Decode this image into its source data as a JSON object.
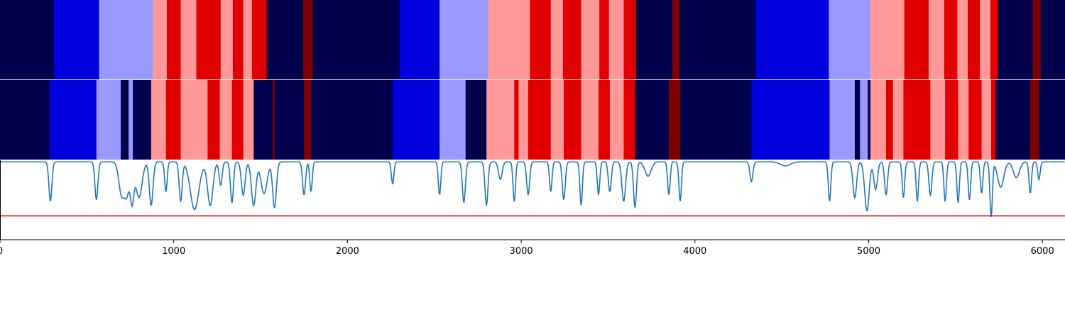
{
  "chart_data": {
    "type": "heatmap",
    "title": "",
    "xlabel": "",
    "ylabel": "",
    "xlim": [
      0,
      6130
    ],
    "x_ticks": [
      "0",
      "1000",
      "2000",
      "3000",
      "4000",
      "5000",
      "6000"
    ],
    "state_colors": {
      "0": "#00004c",
      "1": "#0000dd",
      "2": "#9999ff",
      "3": "#ff9999",
      "4": "#e00000",
      "5": "#7f0000"
    },
    "rows": [
      {
        "segments": [
          [
            0,
            310,
            0
          ],
          [
            310,
            570,
            1
          ],
          [
            570,
            880,
            2
          ],
          [
            880,
            960,
            3
          ],
          [
            960,
            1040,
            4
          ],
          [
            1040,
            1130,
            3
          ],
          [
            1130,
            1270,
            4
          ],
          [
            1270,
            1340,
            3
          ],
          [
            1340,
            1400,
            4
          ],
          [
            1400,
            1450,
            3
          ],
          [
            1450,
            1535,
            4
          ],
          [
            1535,
            1745,
            0
          ],
          [
            1745,
            1800,
            5
          ],
          [
            1800,
            2300,
            0
          ],
          [
            2300,
            2530,
            1
          ],
          [
            2530,
            2810,
            2
          ],
          [
            2810,
            3050,
            3
          ],
          [
            3050,
            3170,
            4
          ],
          [
            3170,
            3240,
            3
          ],
          [
            3240,
            3345,
            4
          ],
          [
            3345,
            3450,
            3
          ],
          [
            3450,
            3505,
            4
          ],
          [
            3505,
            3590,
            3
          ],
          [
            3590,
            3660,
            4
          ],
          [
            3660,
            3870,
            0
          ],
          [
            3870,
            3910,
            5
          ],
          [
            3910,
            4350,
            0
          ],
          [
            4350,
            4770,
            1
          ],
          [
            4770,
            5010,
            2
          ],
          [
            5010,
            5205,
            3
          ],
          [
            5205,
            5345,
            4
          ],
          [
            5345,
            5435,
            3
          ],
          [
            5435,
            5510,
            4
          ],
          [
            5510,
            5570,
            3
          ],
          [
            5570,
            5640,
            4
          ],
          [
            5640,
            5700,
            3
          ],
          [
            5700,
            5745,
            4
          ],
          [
            5745,
            5945,
            0
          ],
          [
            5945,
            5990,
            5
          ],
          [
            5990,
            6130,
            0
          ]
        ]
      },
      {
        "segments": [
          [
            0,
            285,
            0
          ],
          [
            285,
            555,
            1
          ],
          [
            555,
            695,
            2
          ],
          [
            695,
            740,
            0
          ],
          [
            740,
            765,
            2
          ],
          [
            765,
            870,
            0
          ],
          [
            870,
            955,
            3
          ],
          [
            955,
            1040,
            4
          ],
          [
            1040,
            1195,
            3
          ],
          [
            1195,
            1265,
            4
          ],
          [
            1265,
            1335,
            3
          ],
          [
            1335,
            1400,
            4
          ],
          [
            1400,
            1460,
            3
          ],
          [
            1460,
            1570,
            0
          ],
          [
            1570,
            1580,
            5
          ],
          [
            1580,
            1750,
            0
          ],
          [
            1750,
            1790,
            5
          ],
          [
            1790,
            2260,
            0
          ],
          [
            2260,
            2530,
            1
          ],
          [
            2530,
            2680,
            2
          ],
          [
            2680,
            2800,
            0
          ],
          [
            2800,
            2960,
            3
          ],
          [
            2960,
            2985,
            4
          ],
          [
            2985,
            3040,
            3
          ],
          [
            3040,
            3170,
            4
          ],
          [
            3170,
            3245,
            3
          ],
          [
            3245,
            3345,
            4
          ],
          [
            3345,
            3445,
            3
          ],
          [
            3445,
            3510,
            4
          ],
          [
            3510,
            3590,
            3
          ],
          [
            3590,
            3655,
            4
          ],
          [
            3655,
            3850,
            0
          ],
          [
            3850,
            3915,
            5
          ],
          [
            3915,
            4325,
            0
          ],
          [
            4325,
            4775,
            1
          ],
          [
            4775,
            4920,
            2
          ],
          [
            4920,
            4950,
            0
          ],
          [
            4950,
            4995,
            2
          ],
          [
            4995,
            5010,
            0
          ],
          [
            5010,
            5100,
            3
          ],
          [
            5100,
            5140,
            4
          ],
          [
            5140,
            5200,
            3
          ],
          [
            5200,
            5355,
            4
          ],
          [
            5355,
            5440,
            3
          ],
          [
            5440,
            5515,
            4
          ],
          [
            5515,
            5575,
            3
          ],
          [
            5575,
            5650,
            4
          ],
          [
            5650,
            5705,
            3
          ],
          [
            5705,
            5730,
            4
          ],
          [
            5730,
            5930,
            0
          ],
          [
            5930,
            5980,
            5
          ],
          [
            5980,
            6130,
            0
          ]
        ]
      }
    ],
    "signal": {
      "color": "#1f77b4",
      "threshold": -0.7,
      "threshold_color": "#e00000",
      "ylim": [
        -1.0,
        0.0
      ],
      "baseline": -0.02,
      "dips": [
        [
          290,
          -0.5,
          12
        ],
        [
          555,
          -0.48,
          12
        ],
        [
          700,
          -0.42,
          22
        ],
        [
          730,
          -0.38,
          18
        ],
        [
          760,
          -0.5,
          15
        ],
        [
          800,
          -0.45,
          25
        ],
        [
          870,
          -0.55,
          15
        ],
        [
          955,
          -0.38,
          10
        ],
        [
          1040,
          -0.5,
          12
        ],
        [
          1120,
          -0.6,
          35
        ],
        [
          1210,
          -0.55,
          22
        ],
        [
          1270,
          -0.3,
          12
        ],
        [
          1335,
          -0.52,
          12
        ],
        [
          1400,
          -0.42,
          15
        ],
        [
          1460,
          -0.55,
          18
        ],
        [
          1520,
          -0.4,
          25
        ],
        [
          1580,
          -0.58,
          15
        ],
        [
          1750,
          -0.42,
          12
        ],
        [
          1790,
          -0.38,
          10
        ],
        [
          2260,
          -0.28,
          10
        ],
        [
          2530,
          -0.42,
          10
        ],
        [
          2670,
          -0.52,
          12
        ],
        [
          2800,
          -0.55,
          12
        ],
        [
          2880,
          -0.22,
          15
        ],
        [
          2960,
          -0.5,
          10
        ],
        [
          3040,
          -0.42,
          12
        ],
        [
          3170,
          -0.38,
          10
        ],
        [
          3245,
          -0.48,
          12
        ],
        [
          3345,
          -0.55,
          10
        ],
        [
          3445,
          -0.42,
          10
        ],
        [
          3510,
          -0.38,
          12
        ],
        [
          3590,
          -0.5,
          15
        ],
        [
          3655,
          -0.58,
          12
        ],
        [
          3730,
          -0.18,
          25
        ],
        [
          3850,
          -0.42,
          10
        ],
        [
          3915,
          -0.5,
          10
        ],
        [
          4325,
          -0.25,
          12
        ],
        [
          4520,
          -0.05,
          40
        ],
        [
          4775,
          -0.5,
          10
        ],
        [
          4920,
          -0.45,
          15
        ],
        [
          4990,
          -0.62,
          18
        ],
        [
          5040,
          -0.35,
          15
        ],
        [
          5100,
          -0.42,
          12
        ],
        [
          5200,
          -0.45,
          10
        ],
        [
          5280,
          -0.5,
          10
        ],
        [
          5355,
          -0.42,
          12
        ],
        [
          5440,
          -0.5,
          10
        ],
        [
          5515,
          -0.52,
          10
        ],
        [
          5580,
          -0.48,
          10
        ],
        [
          5650,
          -0.4,
          10
        ],
        [
          5705,
          -0.7,
          10
        ],
        [
          5760,
          -0.32,
          25
        ],
        [
          5850,
          -0.2,
          25
        ],
        [
          5930,
          -0.4,
          10
        ],
        [
          5980,
          -0.22,
          10
        ]
      ]
    }
  }
}
